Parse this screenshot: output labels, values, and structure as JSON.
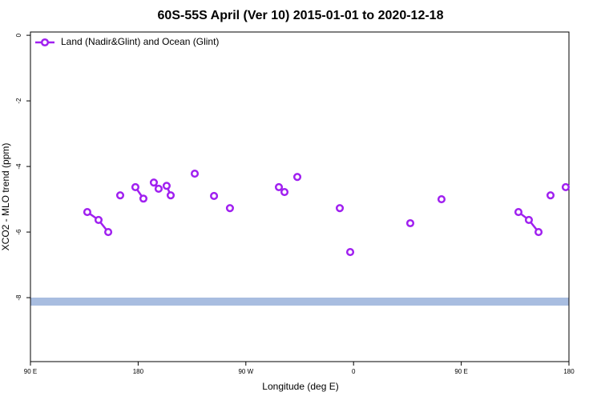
{
  "chart_data": {
    "type": "line",
    "title": "60S-55S April (Ver 10)   2015-01-01 to 2020-12-18",
    "x_label": "Longitude (deg E)",
    "y_label": "XCO2 - MLO trend (ppm)",
    "xlim": [
      90,
      540
    ],
    "ylim": [
      -9.95,
      0.1
    ],
    "xticks": [
      {
        "value": 90,
        "label": "90 E"
      },
      180,
      {
        "value": 270,
        "label": "90 W"
      },
      {
        "value": 360,
        "label": "0"
      },
      {
        "value": 450,
        "label": "90 E"
      },
      {
        "value": 540,
        "label": "180"
      }
    ],
    "yticks": [
      0,
      -2,
      -4,
      -6,
      -8
    ],
    "legend": "top-left",
    "hline": {
      "value": -8.12,
      "color": "#a8bde0"
    },
    "series": [
      {
        "name": "Land (Nadir&Glint) and Ocean (Glint)",
        "color": "#a020f0",
        "x": [
          137.5,
          146.9,
          155,
          null,
          165,
          null,
          177.7,
          184.4,
          null,
          193.1,
          197.1,
          null,
          203.8,
          207.2,
          null,
          227.3,
          null,
          243.4,
          null,
          256.7,
          null,
          297.6,
          302.3,
          null,
          313,
          null,
          348.5,
          null,
          357.2,
          null,
          407.4,
          null,
          433.5,
          null,
          497.8,
          506.5,
          514.6,
          null,
          524.6,
          null,
          537.3
        ],
        "values": [
          -5.39,
          -5.63,
          -6.0,
          null,
          -4.88,
          null,
          -4.63,
          -4.98,
          null,
          -4.49,
          -4.68,
          null,
          -4.59,
          -4.88,
          null,
          -4.22,
          null,
          -4.9,
          null,
          -5.27,
          null,
          -4.63,
          -4.78,
          null,
          -4.32,
          null,
          -5.27,
          null,
          -6.61,
          null,
          -5.73,
          null,
          -5.0,
          null,
          -5.39,
          -5.63,
          -6.0,
          null,
          -4.88,
          null,
          -4.63
        ]
      }
    ]
  }
}
